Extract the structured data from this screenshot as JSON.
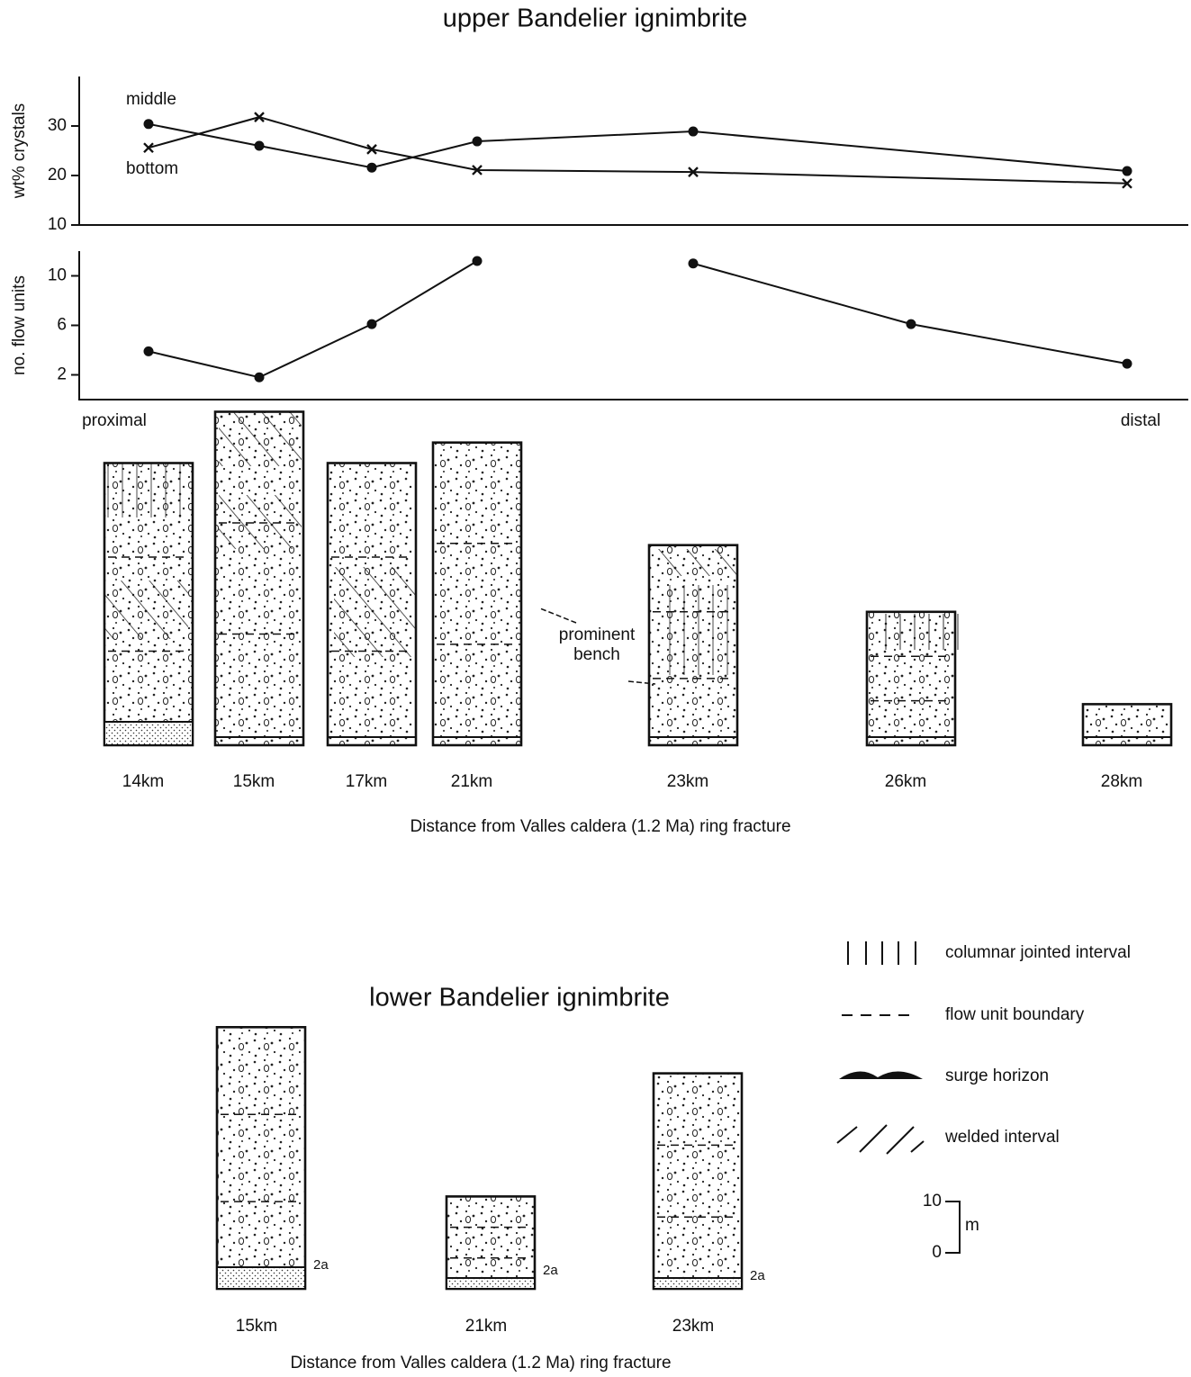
{
  "title": "upper Bandelier ignimbrite",
  "chart_data": [
    {
      "type": "line",
      "ylabel": "wt% crystals",
      "categories": [
        "14km",
        "15km",
        "17km",
        "21km",
        "23km",
        "26km",
        "28km"
      ],
      "ylim": [
        10,
        40
      ],
      "yticks": [
        10,
        20,
        30
      ],
      "series": [
        {
          "name": "middle",
          "marker": "dot",
          "color": "#111111",
          "x": [
            "14km",
            "15km",
            "17km",
            "21km",
            "23km",
            "28km"
          ],
          "values": [
            30.4,
            26,
            21.6,
            26.9,
            28.9,
            20.9
          ]
        },
        {
          "name": "bottom",
          "marker": "cross",
          "color": "#111111",
          "x": [
            "14km",
            "15km",
            "17km",
            "21km",
            "23km",
            "28km"
          ],
          "values": [
            25.6,
            31.8,
            25.3,
            21.1,
            20.7,
            18.4
          ]
        }
      ]
    },
    {
      "type": "line",
      "ylabel": "no. flow units",
      "ylim": [
        0,
        12
      ],
      "yticks": [
        2,
        6,
        10
      ],
      "series": [
        {
          "marker": "dot",
          "color": "#111111",
          "x": [
            "14km",
            "15km",
            "17km",
            "21km"
          ],
          "values": [
            3.9,
            1.8,
            6.1,
            11.2
          ]
        },
        {
          "marker": "dot",
          "color": "#111111",
          "x": [
            "23km",
            "26km",
            "28km"
          ],
          "values": [
            11,
            6.1,
            2.9
          ]
        }
      ]
    }
  ],
  "upper_section": {
    "left_label": "proximal",
    "right_label": "distal",
    "thickness_m": [
      55,
      65,
      55,
      59,
      39,
      26,
      8
    ],
    "annotation": [
      "prominent",
      "bench"
    ],
    "xlabel": "Distance from Valles caldera (1.2 Ma) ring fracture"
  },
  "lower_section": {
    "title": "lower Bandelier ignimbrite",
    "columns": [
      {
        "label": "15km",
        "thickness_m": 51,
        "base_label": "2a"
      },
      {
        "label": "21km",
        "thickness_m": 18,
        "base_label": "2a"
      },
      {
        "label": "23km",
        "thickness_m": 42,
        "base_label": "2a"
      }
    ],
    "xlabel": "Distance from Valles caldera (1.2 Ma) ring fracture"
  },
  "legend": [
    "columnar jointed interval",
    "flow unit boundary",
    "surge horizon",
    "welded interval"
  ],
  "scale_bar": {
    "ticks": [
      10,
      0
    ],
    "unit": "m"
  }
}
